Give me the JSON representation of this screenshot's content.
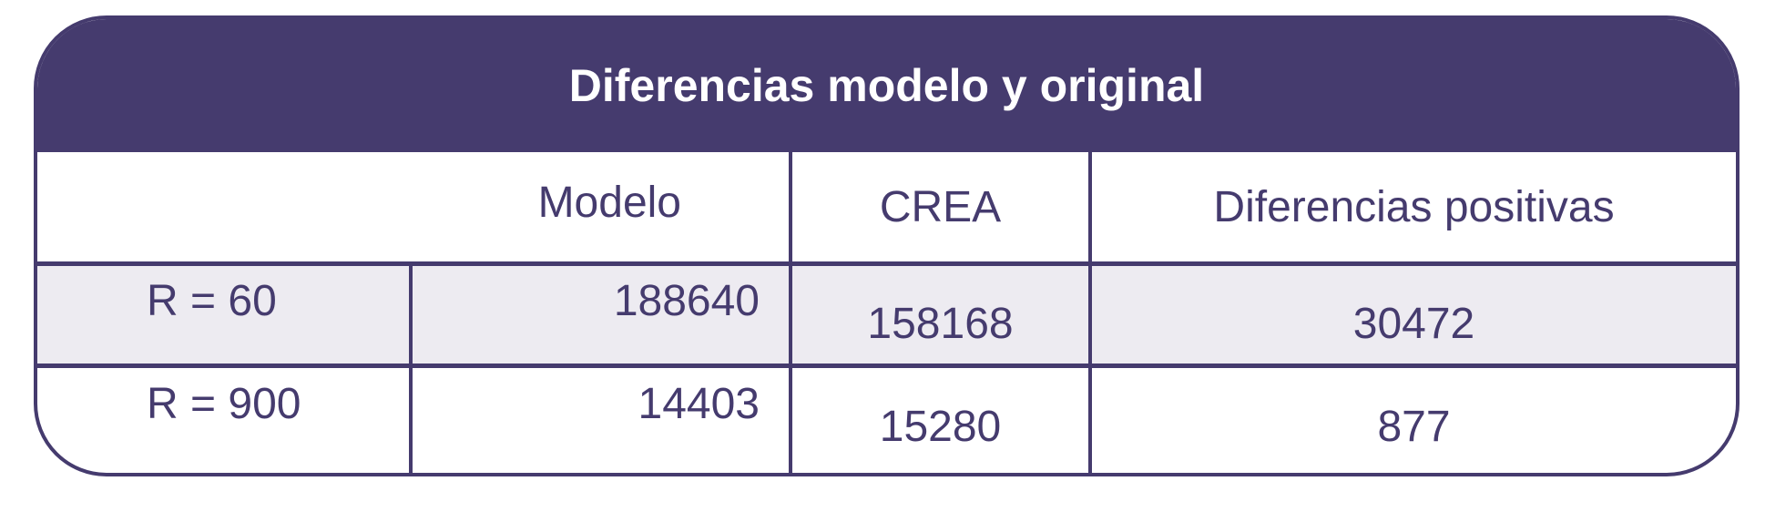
{
  "title": "Diferencias modelo y original",
  "columns": [
    "",
    "Modelo",
    "CREA",
    "Diferencias positivas"
  ],
  "rows": [
    {
      "label": "R = 60",
      "modelo": "188640",
      "crea": "158168",
      "diferencias": "30472"
    },
    {
      "label": "R = 900",
      "modelo": "14403",
      "crea": "15280",
      "diferencias": "877"
    }
  ],
  "colors": {
    "primary": "#453b6e",
    "row_shade": "#edebf1"
  }
}
